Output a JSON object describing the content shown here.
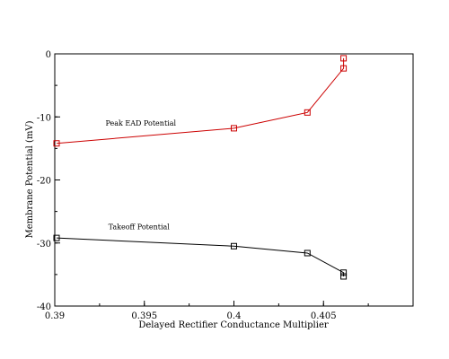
{
  "chart_data": {
    "type": "line",
    "xlabel": "Delayed Rectifier Conductance Multiplier",
    "ylabel": "Membrane Potential (mV)",
    "xlim": [
      0.39,
      0.41
    ],
    "ylim": [
      -40,
      0
    ],
    "x_ticks": [
      0.39,
      0.395,
      0.4,
      0.405
    ],
    "x_tick_labels": [
      "0.39",
      "0.395",
      "0.4",
      "0.405"
    ],
    "y_ticks": [
      0,
      -10,
      -20,
      -30,
      -40
    ],
    "y_tick_labels": [
      "0",
      "-10",
      "-20",
      "-30",
      "-40"
    ],
    "grid": false,
    "series": [
      {
        "name": "Peak EAD Potential",
        "color": "#cc0000",
        "marker": "square",
        "x": [
          0.3901,
          0.4,
          0.4041,
          0.40612,
          0.40612
        ],
        "y": [
          -14.2,
          -11.8,
          -9.3,
          -2.3,
          -0.7
        ]
      },
      {
        "name": "Takeoff Potential",
        "color": "#000000",
        "marker": "square",
        "x": [
          0.3901,
          0.4,
          0.4041,
          0.40612,
          0.40612
        ],
        "y": [
          -29.2,
          -30.5,
          -31.6,
          -34.7,
          -35.3
        ]
      }
    ],
    "annotations": [
      {
        "text": "Peak EAD Potential",
        "x": 0.3948,
        "y": -11.4
      },
      {
        "text": "Takeoff Potential",
        "x": 0.3947,
        "y": -27.8
      }
    ]
  }
}
